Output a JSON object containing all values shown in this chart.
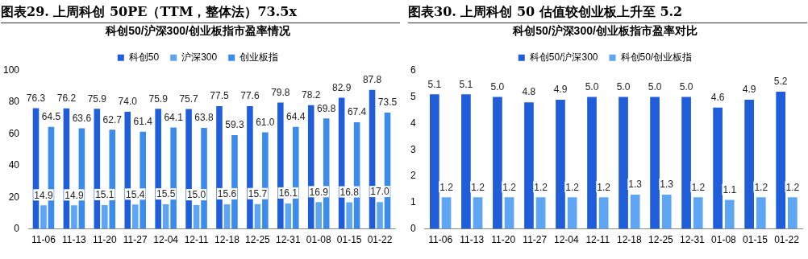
{
  "chart_data": [
    {
      "type": "bar",
      "title": "图表29. 上周科创 50PE（TTM，整体法）73.5x",
      "subtitle": "科创50/沪深300/创业板指市盈率情况",
      "categories": [
        "11-06",
        "11-13",
        "11-20",
        "11-27",
        "12-04",
        "12-11",
        "12-18",
        "12-25",
        "12-31",
        "01-08",
        "01-15",
        "01-22"
      ],
      "series": [
        {
          "name": "科创50",
          "color": "#1f5ed8",
          "values": [
            76.3,
            76.2,
            75.9,
            74.0,
            75.9,
            75.7,
            77.5,
            77.6,
            79.8,
            78.2,
            82.9,
            87.8
          ],
          "value_labels": [
            "76.3",
            "76.2",
            "75.9",
            "74.0",
            "75.9",
            "75.7",
            "77.5",
            "77.6",
            "79.8",
            "78.2",
            "82.9",
            "87.8"
          ]
        },
        {
          "name": "沪深300",
          "color": "#5ea6f4",
          "values": [
            14.9,
            14.9,
            15.1,
            15.4,
            15.5,
            15.0,
            15.6,
            15.7,
            16.1,
            16.9,
            16.8,
            17.0
          ],
          "value_labels": [
            "14.9",
            "14.9",
            "15.1",
            "15.4",
            "15.5",
            "15.0",
            "15.6",
            "15.7",
            "16.1",
            "16.9",
            "16.8",
            "17.0"
          ]
        },
        {
          "name": "创业板指",
          "color": "#3b8aee",
          "values": [
            64.5,
            63.6,
            62.7,
            61.4,
            64.1,
            63.8,
            59.3,
            61.0,
            64.4,
            69.8,
            67.4,
            73.5
          ],
          "value_labels": [
            "64.5",
            "63.6",
            "62.7",
            "61.4",
            "64.1",
            "63.8",
            "59.3",
            "61.0",
            "64.4",
            "69.8",
            "67.4",
            "73.5"
          ]
        }
      ],
      "ylim": [
        0,
        100
      ],
      "yticks": [
        0,
        20,
        40,
        60,
        80,
        100
      ],
      "grid": false,
      "legend": "top"
    },
    {
      "type": "bar",
      "title": "图表30. 上周科创 50 估值较创业板上升至 5.2",
      "subtitle": "科创50/沪深300/创业板指市盈率对比",
      "categories": [
        "11-06",
        "11-13",
        "11-20",
        "11-27",
        "12-04",
        "12-11",
        "12-18",
        "12-25",
        "12-31",
        "01-08",
        "01-15",
        "01-22"
      ],
      "series": [
        {
          "name": "科创50/沪深300",
          "color": "#1f5ed8",
          "values": [
            5.1,
            5.1,
            5.0,
            4.8,
            4.9,
            5.0,
            5.0,
            5.0,
            5.0,
            4.6,
            4.9,
            5.2
          ],
          "value_labels": [
            "5.1",
            "5.1",
            "5.0",
            "4.8",
            "4.9",
            "5.0",
            "5.0",
            "5.0",
            "5.0",
            "4.6",
            "4.9",
            "5.2"
          ]
        },
        {
          "name": "科创50/创业板指",
          "color": "#5ea6f4",
          "values": [
            1.2,
            1.2,
            1.2,
            1.2,
            1.2,
            1.2,
            1.3,
            1.3,
            1.2,
            1.1,
            1.2,
            1.2
          ],
          "value_labels": [
            "1.2",
            "1.2",
            "1.2",
            "1.2",
            "1.2",
            "1.2",
            "1.3",
            "1.3",
            "1.2",
            "1.1",
            "1.2",
            "1.2"
          ]
        }
      ],
      "ylim": [
        0,
        6
      ],
      "yticks": [
        0,
        1,
        2,
        3,
        4,
        5,
        6
      ],
      "grid": false,
      "legend": "top"
    }
  ]
}
